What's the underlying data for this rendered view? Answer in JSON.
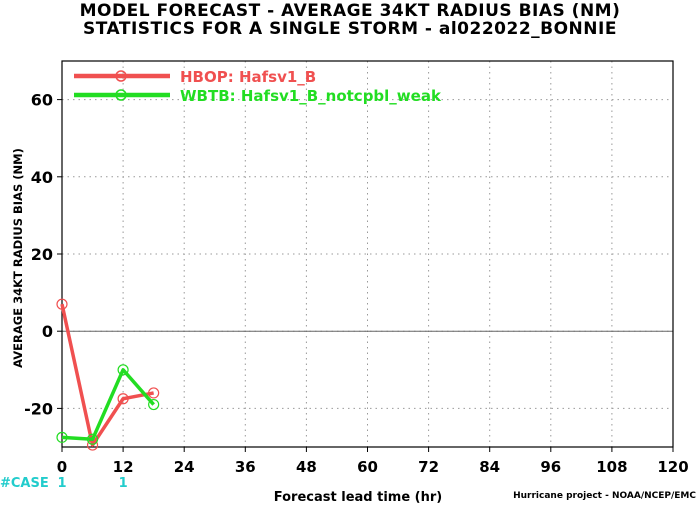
{
  "chart_data": {
    "type": "line",
    "title": "MODEL FORECAST - AVERAGE 34KT RADIUS BIAS (NM)",
    "subtitle": "STATISTICS FOR A SINGLE STORM - al022022_BONNIE",
    "xlabel": "Forecast lead time (hr)",
    "ylabel": "AVERAGE 34KT RADIUS BIAS (NM)",
    "xlim": [
      0,
      120
    ],
    "ylim": [
      -30,
      70
    ],
    "xticks": [
      0,
      12,
      24,
      36,
      48,
      60,
      72,
      84,
      96,
      108,
      120
    ],
    "yticks": [
      -20,
      0,
      20,
      40,
      60
    ],
    "grid": true,
    "legend_position": "top-left",
    "series": [
      {
        "name": "HBOP: Hafsv1_B",
        "color": "#f05050",
        "x": [
          0,
          6,
          12,
          18
        ],
        "y": [
          7,
          -29.5,
          -17.5,
          -16
        ]
      },
      {
        "name": "WBTB: Hafsv1_B_notcpbl_weak",
        "color": "#22dd22",
        "x": [
          0,
          6,
          12,
          18
        ],
        "y": [
          -27.5,
          -28,
          -10,
          -19
        ]
      }
    ],
    "case_label": "#CASE",
    "case_counts": [
      {
        "x": 0,
        "label": "1"
      },
      {
        "x": 12,
        "label": "1"
      }
    ]
  },
  "credit": "Hurricane project - NOAA/NCEP/EMC"
}
